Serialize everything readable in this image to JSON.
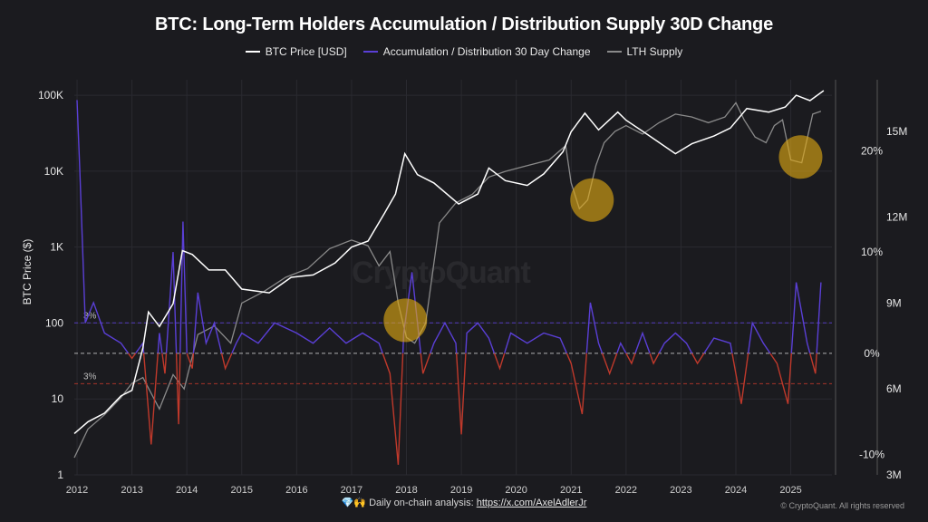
{
  "chart_data": {
    "type": "line",
    "title": "BTC: Long-Term Holders Accumulation / Distribution Supply 30D Change",
    "ylabel": "BTC Price ($)",
    "legend": [
      {
        "name": "BTC Price [USD]",
        "color": "#ffffff"
      },
      {
        "name": "Accumulation / Distribution 30 Day Change",
        "color": "#5a3fd6"
      },
      {
        "name": "LTH Supply",
        "color": "#8a8a8a"
      }
    ],
    "legend_placement": "top-center",
    "x_ticks": [
      "2012",
      "2013",
      "2014",
      "2015",
      "2016",
      "2017",
      "2018",
      "2019",
      "2020",
      "2021",
      "2022",
      "2023",
      "2024",
      "2025"
    ],
    "xlim": [
      2011.95,
      2025.75
    ],
    "left_axis": {
      "scale": "log",
      "ylim": [
        1,
        160000
      ],
      "ticks": [
        "1",
        "10",
        "100",
        "1K",
        "10K",
        "100K"
      ]
    },
    "middle_axis": {
      "ylim": [
        -0.12,
        0.27
      ],
      "ticks": [
        "-10%",
        "0%",
        "10%",
        "20%"
      ]
    },
    "right_axis": {
      "ylim": [
        3000000,
        16800000
      ],
      "ticks": [
        "3M",
        "6M",
        "9M",
        "12M",
        "15M"
      ]
    },
    "threshold_lines": [
      {
        "value": 0.03,
        "label": "3%",
        "color": "#5a3fd6"
      },
      {
        "value": -0.03,
        "label": "3%",
        "color": "#c0392b"
      },
      {
        "value": 0,
        "label": "",
        "color": "#cccccc"
      }
    ],
    "series": [
      {
        "name": "BTC Price [USD]",
        "axis": "left",
        "x": [
          2011.95,
          2012.2,
          2012.5,
          2012.8,
          2013.0,
          2013.2,
          2013.3,
          2013.5,
          2013.75,
          2013.92,
          2014.1,
          2014.4,
          2014.7,
          2015.0,
          2015.5,
          2015.9,
          2016.3,
          2016.7,
          2017.0,
          2017.3,
          2017.6,
          2017.8,
          2017.97,
          2018.2,
          2018.5,
          2018.95,
          2019.3,
          2019.5,
          2019.8,
          2020.2,
          2020.5,
          2020.85,
          2021.0,
          2021.25,
          2021.5,
          2021.85,
          2022.0,
          2022.4,
          2022.9,
          2023.2,
          2023.6,
          2023.9,
          2024.2,
          2024.6,
          2024.9,
          2025.1,
          2025.35,
          2025.6
        ],
        "values": [
          3.5,
          5,
          6.5,
          11,
          13,
          47,
          140,
          90,
          180,
          900,
          800,
          500,
          500,
          280,
          250,
          400,
          430,
          620,
          1000,
          1200,
          2800,
          5000,
          17000,
          9000,
          7000,
          3700,
          5000,
          11000,
          7500,
          6500,
          9200,
          18000,
          33000,
          58000,
          35000,
          60000,
          47000,
          30000,
          17000,
          23000,
          29000,
          37000,
          67000,
          60000,
          70000,
          100000,
          85000,
          115000
        ]
      },
      {
        "name": "Accumulation / Distribution 30 Day Change",
        "axis": "middle",
        "x": [
          2012.0,
          2012.05,
          2012.15,
          2012.3,
          2012.5,
          2012.8,
          2013.0,
          2013.2,
          2013.35,
          2013.5,
          2013.6,
          2013.75,
          2013.85,
          2013.93,
          2014.0,
          2014.1,
          2014.2,
          2014.35,
          2014.5,
          2014.7,
          2014.9,
          2015.0,
          2015.3,
          2015.6,
          2016.0,
          2016.3,
          2016.6,
          2016.9,
          2017.2,
          2017.5,
          2017.7,
          2017.85,
          2017.95,
          2018.1,
          2018.3,
          2018.5,
          2018.7,
          2018.9,
          2019.0,
          2019.1,
          2019.3,
          2019.5,
          2019.7,
          2019.9,
          2020.2,
          2020.5,
          2020.8,
          2021.0,
          2021.2,
          2021.35,
          2021.5,
          2021.7,
          2021.9,
          2022.1,
          2022.3,
          2022.5,
          2022.7,
          2022.9,
          2023.1,
          2023.3,
          2023.6,
          2023.9,
          2024.1,
          2024.3,
          2024.5,
          2024.75,
          2024.95,
          2025.1,
          2025.3,
          2025.45,
          2025.55
        ],
        "values": [
          0.25,
          0.18,
          0.03,
          0.05,
          0.02,
          0.01,
          -0.005,
          0.01,
          -0.09,
          0.02,
          -0.02,
          0.1,
          -0.07,
          0.13,
          0.0,
          -0.015,
          0.06,
          0.01,
          0.03,
          -0.015,
          0.01,
          0.02,
          0.01,
          0.03,
          0.02,
          0.01,
          0.025,
          0.01,
          0.02,
          0.01,
          -0.02,
          -0.11,
          0.02,
          0.08,
          -0.02,
          0.01,
          0.03,
          0.01,
          -0.08,
          0.02,
          0.03,
          0.015,
          -0.015,
          0.02,
          0.01,
          0.02,
          0.015,
          -0.01,
          -0.06,
          0.05,
          0.01,
          -0.02,
          0.01,
          -0.01,
          0.02,
          -0.01,
          0.01,
          0.02,
          0.01,
          -0.01,
          0.015,
          0.01,
          -0.05,
          0.03,
          0.01,
          -0.01,
          -0.05,
          0.07,
          0.01,
          -0.02,
          0.07
        ]
      },
      {
        "name": "LTH Supply",
        "axis": "right",
        "x": [
          2011.95,
          2012.2,
          2012.5,
          2012.8,
          2013.0,
          2013.2,
          2013.5,
          2013.75,
          2013.95,
          2014.2,
          2014.5,
          2014.8,
          2015.0,
          2015.4,
          2015.8,
          2016.2,
          2016.6,
          2017.0,
          2017.3,
          2017.5,
          2017.7,
          2017.85,
          2018.0,
          2018.15,
          2018.35,
          2018.6,
          2018.9,
          2019.2,
          2019.5,
          2019.8,
          2020.2,
          2020.6,
          2020.9,
          2021.0,
          2021.15,
          2021.3,
          2021.45,
          2021.6,
          2021.8,
          2022.0,
          2022.3,
          2022.6,
          2022.9,
          2023.2,
          2023.5,
          2023.8,
          2024.0,
          2024.15,
          2024.35,
          2024.55,
          2024.7,
          2024.85,
          2025.0,
          2025.2,
          2025.4,
          2025.55
        ],
        "values": [
          3.6,
          4.6,
          5.1,
          5.7,
          6.2,
          6.4,
          5.3,
          6.5,
          6.0,
          7.9,
          8.2,
          7.6,
          9.0,
          9.4,
          9.9,
          10.2,
          10.9,
          11.2,
          11.0,
          10.3,
          10.8,
          9.0,
          7.8,
          7.6,
          8.3,
          11.8,
          12.5,
          12.8,
          13.4,
          13.6,
          13.8,
          14.0,
          14.5,
          13.2,
          12.3,
          12.6,
          13.8,
          14.6,
          15.0,
          15.2,
          14.9,
          15.3,
          15.6,
          15.5,
          15.3,
          15.5,
          16.0,
          15.4,
          14.8,
          14.6,
          15.2,
          15.4,
          14.0,
          13.9,
          15.6,
          15.7
        ]
      }
    ],
    "annotations": [
      {
        "type": "circle",
        "x": 2017.98,
        "axis": "right",
        "value": 8.4,
        "color": "#e1a913"
      },
      {
        "type": "circle",
        "x": 2021.38,
        "axis": "right",
        "value": 12.6,
        "color": "#e1a913"
      },
      {
        "type": "circle",
        "x": 2025.18,
        "axis": "right",
        "value": 14.1,
        "color": "#e1a913"
      }
    ],
    "grid": true
  },
  "footer": {
    "prefix": "Daily on-chain analysis: ",
    "link_text": "https://x.com/AxelAdlerJr",
    "copyright": "© CryptoQuant. All rights reserved",
    "watermark": "CryptoQuant",
    "icon": "diamond-hands-icon"
  }
}
